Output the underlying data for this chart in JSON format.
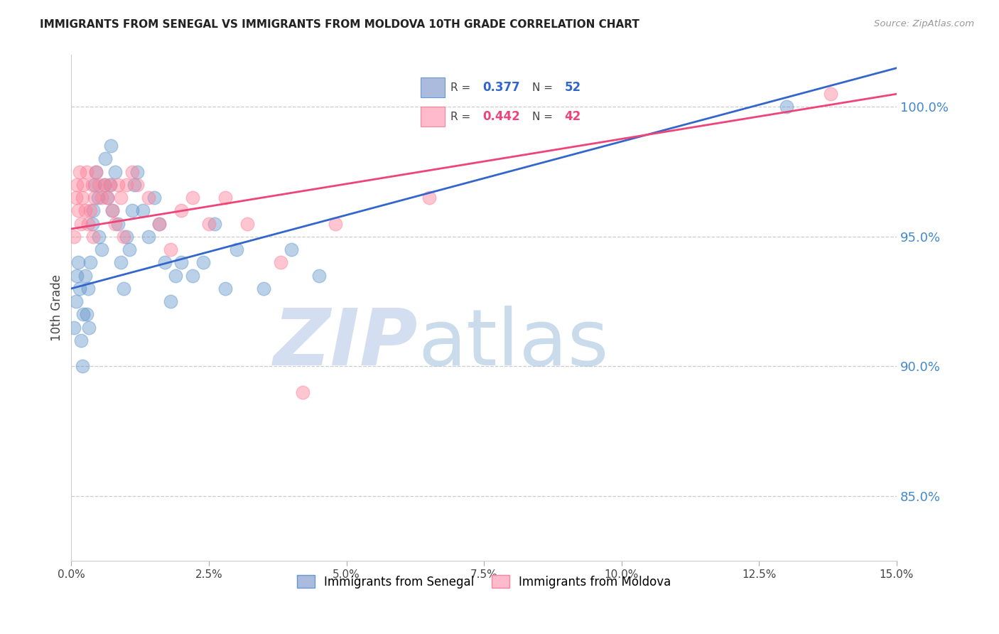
{
  "title": "IMMIGRANTS FROM SENEGAL VS IMMIGRANTS FROM MOLDOVA 10TH GRADE CORRELATION CHART",
  "source": "Source: ZipAtlas.com",
  "ylabel": "10th Grade",
  "y_ticks": [
    85.0,
    90.0,
    95.0,
    100.0
  ],
  "y_tick_labels": [
    "85.0%",
    "90.0%",
    "95.0%",
    "100.0%"
  ],
  "x_min": 0.0,
  "x_max": 15.0,
  "y_min": 82.5,
  "y_max": 102.0,
  "senegal_color": "#6699cc",
  "moldova_color": "#ff8099",
  "senegal_line_color": "#3366cc",
  "moldova_line_color": "#ee4477",
  "senegal_R": 0.377,
  "senegal_N": 52,
  "moldova_R": 0.442,
  "moldova_N": 42,
  "legend_label_senegal": "Immigrants from Senegal",
  "legend_label_moldova": "Immigrants from Moldova",
  "senegal_x": [
    0.05,
    0.08,
    0.1,
    0.12,
    0.15,
    0.18,
    0.2,
    0.22,
    0.25,
    0.28,
    0.3,
    0.32,
    0.35,
    0.38,
    0.4,
    0.42,
    0.45,
    0.48,
    0.5,
    0.55,
    0.6,
    0.62,
    0.65,
    0.7,
    0.72,
    0.75,
    0.8,
    0.85,
    0.9,
    0.95,
    1.0,
    1.05,
    1.1,
    1.15,
    1.2,
    1.3,
    1.4,
    1.5,
    1.6,
    1.7,
    1.8,
    1.9,
    2.0,
    2.2,
    2.4,
    2.6,
    2.8,
    3.0,
    3.5,
    4.0,
    4.5,
    13.0
  ],
  "senegal_y": [
    91.5,
    92.5,
    93.5,
    94.0,
    93.0,
    91.0,
    90.0,
    92.0,
    93.5,
    92.0,
    93.0,
    91.5,
    94.0,
    95.5,
    96.0,
    97.0,
    97.5,
    96.5,
    95.0,
    94.5,
    97.0,
    98.0,
    96.5,
    97.0,
    98.5,
    96.0,
    97.5,
    95.5,
    94.0,
    93.0,
    95.0,
    94.5,
    96.0,
    97.0,
    97.5,
    96.0,
    95.0,
    96.5,
    95.5,
    94.0,
    92.5,
    93.5,
    94.0,
    93.5,
    94.0,
    95.5,
    93.0,
    94.5,
    93.0,
    94.5,
    93.5,
    100.0
  ],
  "moldova_x": [
    0.05,
    0.08,
    0.1,
    0.12,
    0.15,
    0.18,
    0.2,
    0.22,
    0.25,
    0.28,
    0.3,
    0.35,
    0.38,
    0.4,
    0.42,
    0.45,
    0.5,
    0.55,
    0.6,
    0.65,
    0.7,
    0.75,
    0.8,
    0.85,
    0.9,
    0.95,
    1.0,
    1.1,
    1.2,
    1.4,
    1.6,
    1.8,
    2.0,
    2.2,
    2.5,
    2.8,
    3.2,
    3.8,
    4.2,
    4.8,
    6.5,
    13.8
  ],
  "moldova_y": [
    95.0,
    96.5,
    97.0,
    96.0,
    97.5,
    95.5,
    96.5,
    97.0,
    96.0,
    97.5,
    95.5,
    96.0,
    97.0,
    95.0,
    96.5,
    97.5,
    97.0,
    96.5,
    97.0,
    96.5,
    97.0,
    96.0,
    95.5,
    97.0,
    96.5,
    95.0,
    97.0,
    97.5,
    97.0,
    96.5,
    95.5,
    94.5,
    96.0,
    96.5,
    95.5,
    96.5,
    95.5,
    94.0,
    89.0,
    95.5,
    96.5,
    100.5
  ]
}
